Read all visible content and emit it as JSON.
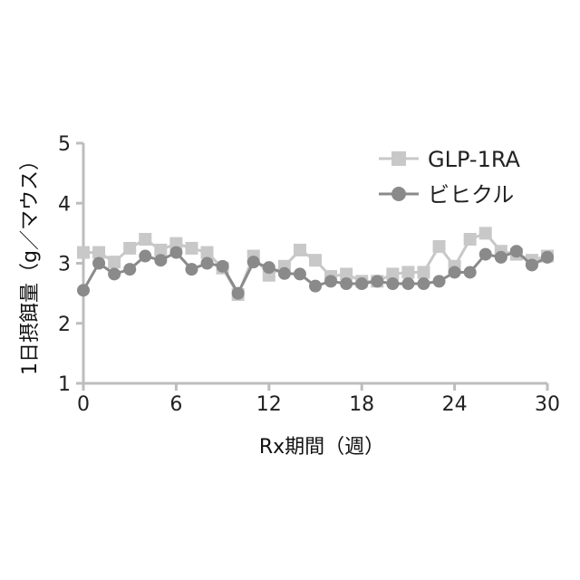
{
  "chart_data": {
    "type": "line",
    "xlabel": "Rx期間（週）",
    "ylabel": "1日摂餌量（g／マウス）",
    "xlim": [
      0,
      30
    ],
    "ylim": [
      1,
      5
    ],
    "xticks": [
      0,
      6,
      12,
      18,
      24,
      30
    ],
    "yticks": [
      1,
      2,
      3,
      4,
      5
    ],
    "grid": false,
    "legend_position": "top-right",
    "x": [
      0,
      1,
      2,
      3,
      4,
      5,
      6,
      7,
      8,
      9,
      10,
      11,
      12,
      13,
      14,
      15,
      16,
      17,
      18,
      19,
      20,
      21,
      22,
      23,
      24,
      25,
      26,
      27,
      28,
      29,
      30
    ],
    "series": [
      {
        "name": "GLP-1RA",
        "marker": "square",
        "color": "#c8c8c8",
        "values": [
          3.18,
          3.18,
          3.02,
          3.25,
          3.4,
          3.22,
          3.33,
          3.25,
          3.18,
          2.92,
          2.48,
          3.12,
          2.8,
          2.95,
          3.22,
          3.05,
          2.78,
          2.82,
          2.7,
          2.7,
          2.82,
          2.85,
          2.85,
          3.28,
          2.95,
          3.4,
          3.5,
          3.2,
          3.15,
          3.05,
          3.12
        ]
      },
      {
        "name": "ビヒクル",
        "marker": "circle",
        "color": "#8a8a8a",
        "values": [
          2.55,
          3.0,
          2.82,
          2.9,
          3.12,
          3.05,
          3.18,
          2.9,
          3.0,
          2.95,
          2.5,
          3.02,
          2.93,
          2.83,
          2.82,
          2.62,
          2.7,
          2.66,
          2.66,
          2.7,
          2.66,
          2.66,
          2.66,
          2.7,
          2.85,
          2.85,
          3.15,
          3.1,
          3.2,
          2.97,
          3.1
        ]
      }
    ]
  }
}
